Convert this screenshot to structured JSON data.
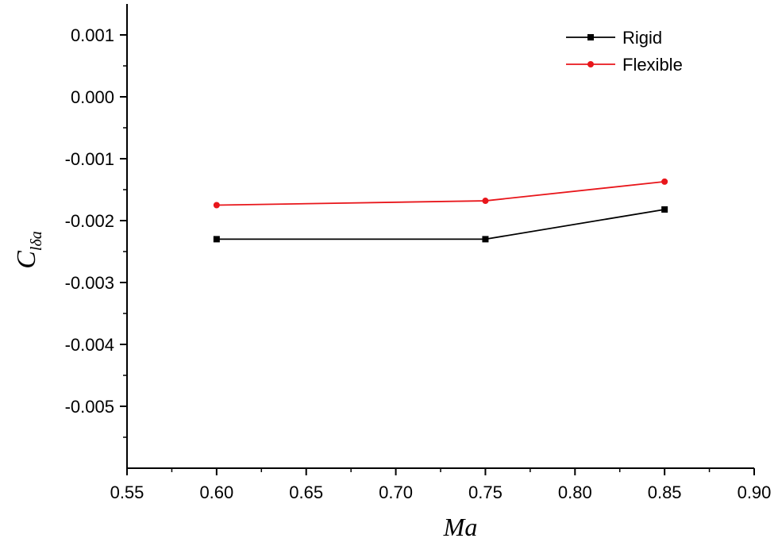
{
  "chart_data": {
    "type": "line",
    "title": "",
    "xlabel": "Ma",
    "ylabel_main": "C",
    "ylabel_sub": "lδa",
    "xlim": [
      0.55,
      0.9
    ],
    "ylim": [
      -0.006,
      0.0015
    ],
    "xticks": [
      0.55,
      0.6,
      0.65,
      0.7,
      0.75,
      0.8,
      0.85,
      0.9
    ],
    "xtick_labels": [
      "0.55",
      "0.60",
      "0.65",
      "0.70",
      "0.75",
      "0.80",
      "0.85",
      "0.90"
    ],
    "yticks": [
      0.001,
      0.0,
      -0.001,
      -0.002,
      -0.003,
      -0.004,
      -0.005
    ],
    "ytick_labels": [
      "0.001",
      "0.000",
      "-0.001",
      "-0.002",
      "-0.003",
      "-0.004",
      "-0.005"
    ],
    "grid": false,
    "legend_position": "top-right",
    "x": [
      0.6,
      0.75,
      0.85
    ],
    "series": [
      {
        "name": "Rigid",
        "color": "#000000",
        "marker": "square",
        "values": [
          -0.0023,
          -0.0023,
          -0.00182
        ]
      },
      {
        "name": "Flexible",
        "color": "#e8161b",
        "marker": "circle",
        "values": [
          -0.00175,
          -0.00168,
          -0.00137
        ]
      }
    ]
  }
}
